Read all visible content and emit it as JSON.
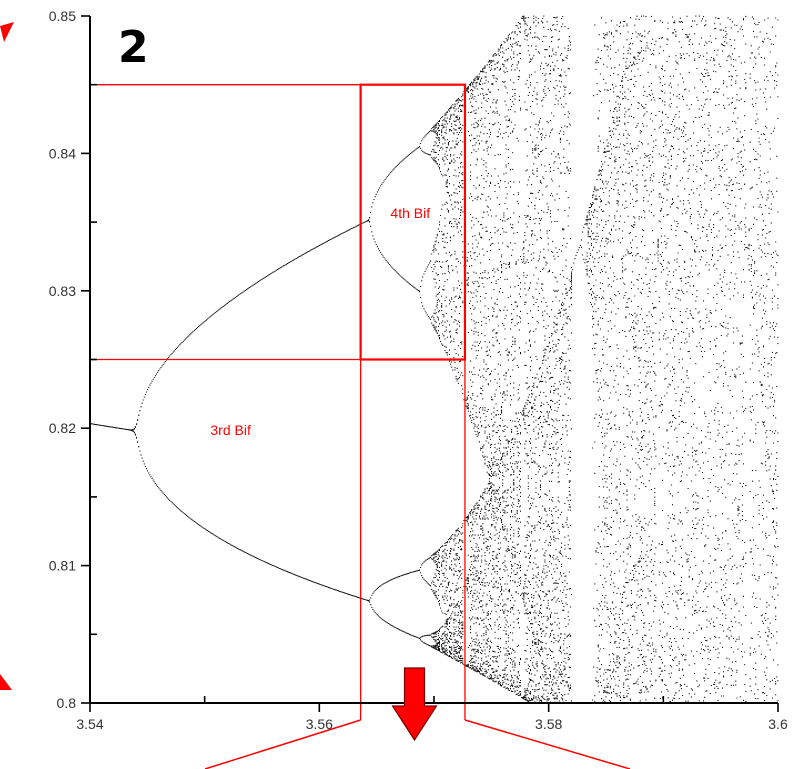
{
  "panel_label": "2",
  "colors": {
    "annotation": "#ff0000",
    "axis": "#000000",
    "points": "#000000"
  },
  "chart_data": {
    "type": "scatter",
    "title": "",
    "xlabel": "",
    "ylabel": "",
    "xlim": [
      3.54,
      3.6
    ],
    "ylim": [
      0.8,
      0.85
    ],
    "x_ticks": [
      {
        "value": 3.54,
        "label": "3.54"
      },
      {
        "value": 3.56,
        "label": "3.56"
      },
      {
        "value": 3.58,
        "label": "3.58"
      },
      {
        "value": 3.6,
        "label": "3.6"
      }
    ],
    "y_ticks": [
      {
        "value": 0.8,
        "label": "0.8"
      },
      {
        "value": 0.81,
        "label": "0.81"
      },
      {
        "value": 0.82,
        "label": "0.82"
      },
      {
        "value": 0.83,
        "label": "0.83"
      },
      {
        "value": 0.84,
        "label": "0.84"
      },
      {
        "value": 0.85,
        "label": "0.85"
      }
    ],
    "grid": false,
    "description": "Logistic map bifurcation diagram, zoomed region",
    "annotations": [
      {
        "label": "3rd Bif",
        "x": 3.5505,
        "y": 0.8195
      },
      {
        "label": "4th Bif",
        "x": 3.5662,
        "y": 0.8353
      }
    ],
    "zoom_boxes": [
      {
        "x_range": [
          3.5636,
          3.5727
        ],
        "y_range": [
          0.825,
          0.845
        ]
      }
    ],
    "reference_lines": [
      {
        "orientation": "horizontal",
        "y": 0.845
      },
      {
        "orientation": "horizontal",
        "y": 0.825
      },
      {
        "orientation": "vertical",
        "x": 3.5636
      },
      {
        "orientation": "vertical",
        "x": 3.5727
      }
    ],
    "arrow_x": 3.5683
  }
}
